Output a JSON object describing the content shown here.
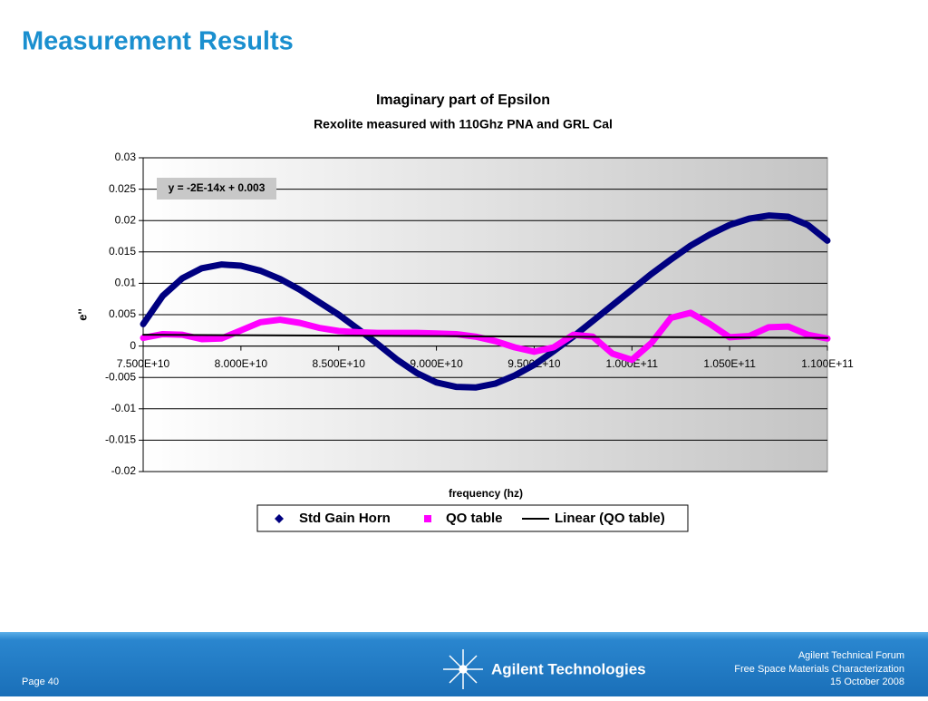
{
  "slide": {
    "title": "Measurement Results",
    "footer": {
      "page": "Page 40",
      "brand": "Agilent Technologies",
      "lines": [
        "Agilent Technical Forum",
        "Free Space Materials Characterization",
        "15 October 2008"
      ]
    }
  },
  "chart_data": {
    "type": "line",
    "title": "Imaginary part of Epsilon",
    "subtitle": "Rexolite measured with 110Ghz PNA and GRL Cal",
    "x_label": "frequency (hz)",
    "y_label": "e''",
    "annotation": "y = -2E-14x + 0.003",
    "x": [
      75000000000,
      76000000000,
      77000000000,
      78000000000,
      79000000000,
      80000000000,
      81000000000,
      82000000000,
      83000000000,
      84000000000,
      85000000000,
      86000000000,
      87000000000,
      88000000000,
      89000000000,
      90000000000,
      91000000000,
      92000000000,
      93000000000,
      94000000000,
      95000000000,
      96000000000,
      97000000000,
      98000000000,
      99000000000,
      100000000000,
      101000000000,
      102000000000,
      103000000000,
      104000000000,
      105000000000,
      106000000000,
      107000000000,
      108000000000,
      109000000000,
      110000000000
    ],
    "series": [
      {
        "name": "Std Gain Horn",
        "color": "#000080",
        "marker": "diamond",
        "values": [
          0.0035,
          0.008,
          0.0108,
          0.0124,
          0.013,
          0.0128,
          0.012,
          0.0107,
          0.009,
          0.007,
          0.005,
          0.0027,
          0.0003,
          -0.0022,
          -0.0043,
          -0.0058,
          -0.0065,
          -0.0066,
          -0.006,
          -0.0047,
          -0.003,
          -0.0008,
          0.0015,
          0.004,
          0.0065,
          0.009,
          0.0115,
          0.0138,
          0.016,
          0.0178,
          0.0193,
          0.0203,
          0.0208,
          0.0206,
          0.0193,
          0.0168
        ]
      },
      {
        "name": "QO table",
        "color": "#ff00ff",
        "marker": "square",
        "values": [
          0.0013,
          0.0019,
          0.0018,
          0.0011,
          0.0012,
          0.0025,
          0.0038,
          0.0042,
          0.0037,
          0.0029,
          0.0024,
          0.0022,
          0.0021,
          0.0021,
          0.0021,
          0.002,
          0.0019,
          0.0015,
          0.0008,
          -0.0002,
          -0.0009,
          -0.0002,
          0.0018,
          0.0015,
          -0.0012,
          -0.0022,
          0.0005,
          0.0045,
          0.0053,
          0.0035,
          0.0014,
          0.0016,
          0.003,
          0.0031,
          0.0018,
          0.0012
        ]
      },
      {
        "name": "Linear (QO table)",
        "color": "#000000",
        "marker": "line",
        "x": [
          75000000000,
          110000000000
        ],
        "values": [
          0.0018,
          0.0013
        ]
      }
    ],
    "xlim": [
      75000000000,
      110000000000
    ],
    "xticks": [
      {
        "value": 75000000000,
        "label": "7.500E+10"
      },
      {
        "value": 80000000000,
        "label": "8.000E+10"
      },
      {
        "value": 85000000000,
        "label": "8.500E+10"
      },
      {
        "value": 90000000000,
        "label": "9.000E+10"
      },
      {
        "value": 95000000000,
        "label": "9.500E+10"
      },
      {
        "value": 100000000000,
        "label": "1.000E+11"
      },
      {
        "value": 105000000000,
        "label": "1.050E+11"
      },
      {
        "value": 110000000000,
        "label": "1.100E+11"
      }
    ],
    "ylim": [
      -0.02,
      0.03
    ],
    "yticks": [
      -0.02,
      -0.015,
      -0.01,
      -0.005,
      0,
      0.005,
      0.01,
      0.015,
      0.02,
      0.025,
      0.03
    ],
    "grid": true,
    "legend": "bottom"
  }
}
